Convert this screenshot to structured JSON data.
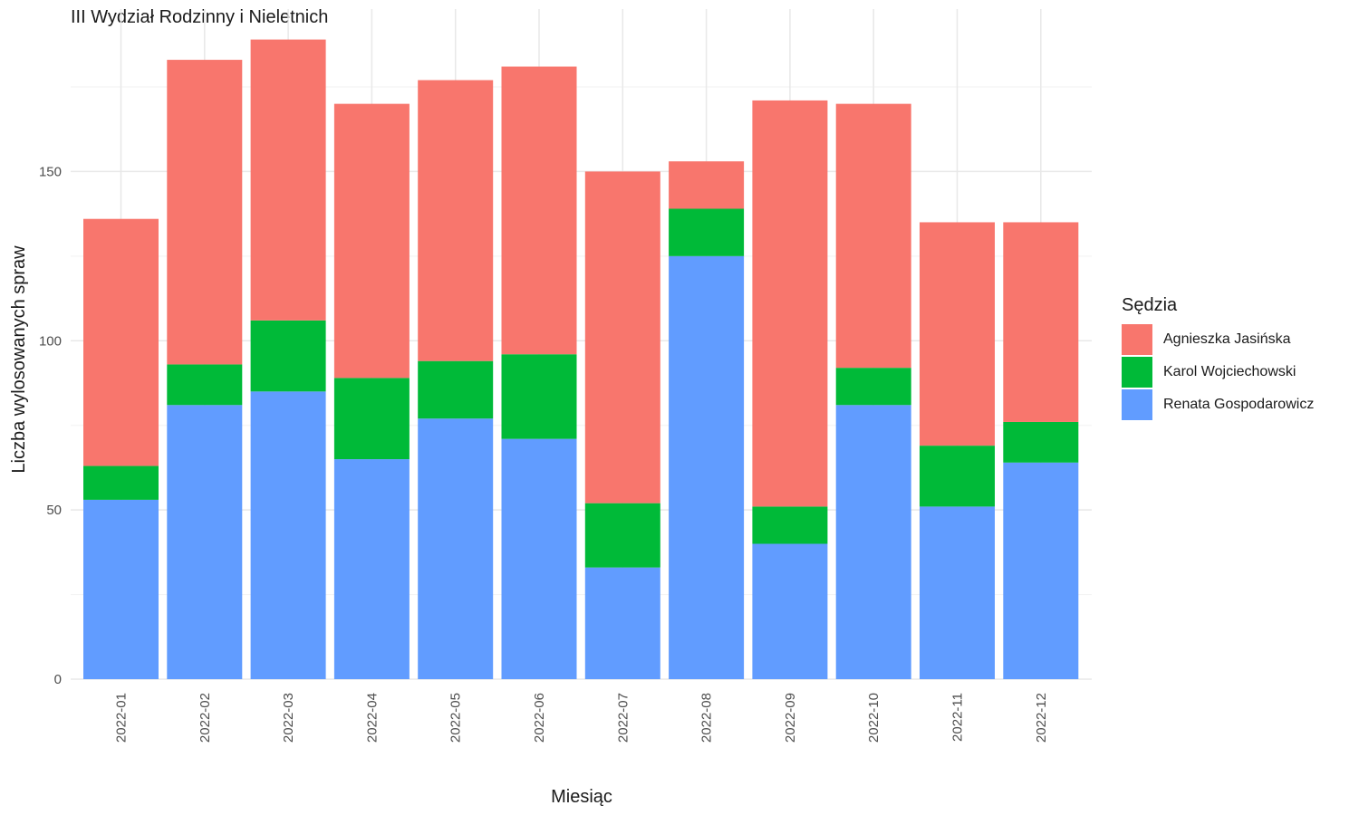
{
  "chart_data": {
    "type": "bar",
    "stacked": true,
    "title": "III Wydział Rodzinny i Nieletnich",
    "xlabel": "Miesiąc",
    "ylabel": "Liczba wylosowanych spraw",
    "ylim": [
      0,
      198
    ],
    "yticks": [
      0,
      50,
      100,
      150
    ],
    "grid": true,
    "legend_position": "right",
    "legend_title": "Sędzia",
    "categories": [
      "2022-01",
      "2022-02",
      "2022-03",
      "2022-04",
      "2022-05",
      "2022-06",
      "2022-07",
      "2022-08",
      "2022-09",
      "2022-10",
      "2022-11",
      "2022-12"
    ],
    "series": [
      {
        "name": "Renata Gospodarowicz",
        "color": "#619CFF",
        "values": [
          53,
          81,
          85,
          65,
          77,
          71,
          33,
          125,
          40,
          81,
          51,
          64
        ]
      },
      {
        "name": "Karol Wojciechowski",
        "color": "#00BA38",
        "values": [
          10,
          12,
          21,
          24,
          17,
          25,
          19,
          14,
          11,
          11,
          18,
          12
        ]
      },
      {
        "name": "Agnieszka Jasińska",
        "color": "#F8766D",
        "values": [
          73,
          90,
          83,
          81,
          83,
          85,
          98,
          14,
          120,
          78,
          66,
          59
        ]
      }
    ],
    "legend_order": [
      "Agnieszka Jasińska",
      "Karol Wojciechowski",
      "Renata Gospodarowicz"
    ]
  }
}
